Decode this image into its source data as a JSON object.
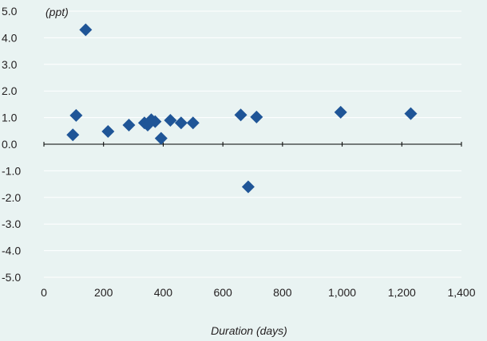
{
  "chart_data": {
    "type": "scatter",
    "title": "",
    "unit_label": "(ppt)",
    "xlabel": "Duration (days)",
    "ylabel": "",
    "xlim": [
      0,
      1400
    ],
    "ylim": [
      -5,
      5
    ],
    "x_ticks": [
      0,
      200,
      400,
      600,
      800,
      1000,
      1200,
      1400
    ],
    "x_tick_labels": [
      "0",
      "200",
      "400",
      "600",
      "800",
      "1,000",
      "1,200",
      "1,400"
    ],
    "y_ticks": [
      5,
      4,
      3,
      2,
      1,
      0,
      -1,
      -2,
      -3,
      -4,
      -5
    ],
    "y_tick_labels": [
      "5.0",
      "4.0",
      "3.0",
      "2.0",
      "1.0",
      "0.0",
      "-1.0",
      "-2.0",
      "-3.0",
      "-4.0",
      "-5.0"
    ],
    "grid": "horizontal",
    "marker": "diamond",
    "colors": {
      "marker": "#1f5597",
      "background": "#e9f3f2",
      "grid": "#ffffff",
      "axis": "#000000"
    },
    "series": [
      {
        "points": [
          [
            97,
            0.35
          ],
          [
            108,
            1.08
          ],
          [
            140,
            4.3
          ],
          [
            215,
            0.48
          ],
          [
            285,
            0.72
          ],
          [
            337,
            0.8
          ],
          [
            348,
            0.72
          ],
          [
            360,
            0.92
          ],
          [
            373,
            0.85
          ],
          [
            393,
            0.22
          ],
          [
            424,
            0.9
          ],
          [
            460,
            0.8
          ],
          [
            500,
            0.8
          ],
          [
            660,
            1.1
          ],
          [
            685,
            -1.6
          ],
          [
            713,
            1.02
          ],
          [
            995,
            1.2
          ],
          [
            1230,
            1.15
          ]
        ]
      }
    ]
  }
}
